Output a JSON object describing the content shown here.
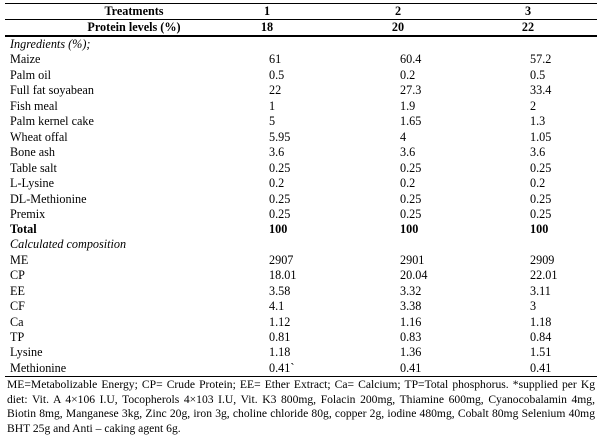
{
  "header": {
    "treatments_label": "Treatments",
    "treatment_numbers": [
      "1",
      "2",
      "3"
    ],
    "protein_label": "Protein levels (%)",
    "protein_values": [
      "18",
      "20",
      "22"
    ]
  },
  "ingredients_title": "Ingredients (%);",
  "ingredients": [
    {
      "name": "Maize",
      "values": [
        "61",
        "60.4",
        "57.2"
      ]
    },
    {
      "name": "Palm oil",
      "values": [
        "0.5",
        "0.2",
        "0.5"
      ]
    },
    {
      "name": "Full fat soyabean",
      "values": [
        "22",
        "27.3",
        "33.4"
      ]
    },
    {
      "name": "Fish meal",
      "values": [
        "1",
        "1.9",
        "2"
      ]
    },
    {
      "name": "Palm kernel cake",
      "values": [
        "5",
        "1.65",
        "1.3"
      ]
    },
    {
      "name": "Wheat offal",
      "values": [
        "5.95",
        "4",
        "1.05"
      ]
    },
    {
      "name": "Bone ash",
      "values": [
        "3.6",
        "3.6",
        "3.6"
      ]
    },
    {
      "name": "Table salt",
      "values": [
        "0.25",
        "0.25",
        "0.25"
      ]
    },
    {
      "name": "L-Lysine",
      "values": [
        "0.2",
        "0.2",
        "0.2"
      ]
    },
    {
      "name": "DL-Methionine",
      "values": [
        "0.25",
        "0.25",
        "0.25"
      ]
    },
    {
      "name": "Premix",
      "values": [
        "0.25",
        "0.25",
        "0.25"
      ]
    }
  ],
  "total": {
    "name": "Total",
    "values": [
      "100",
      "100",
      "100"
    ]
  },
  "composition_title": "Calculated composition",
  "composition": [
    {
      "name": "ME",
      "values": [
        "2907",
        "2901",
        "2909"
      ]
    },
    {
      "name": "CP",
      "values": [
        "18.01",
        "20.04",
        "22.01"
      ]
    },
    {
      "name": "EE",
      "values": [
        "3.58",
        "3.32",
        "3.11"
      ]
    },
    {
      "name": "CF",
      "values": [
        "4.1",
        "3.38",
        "3"
      ]
    },
    {
      "name": "Ca",
      "values": [
        "1.12",
        "1.16",
        "1.18"
      ]
    },
    {
      "name": "TP",
      "values": [
        "0.81",
        "0.83",
        "0.84"
      ]
    },
    {
      "name": "Lysine",
      "values": [
        "1.18",
        "1.36",
        "1.51"
      ]
    },
    {
      "name": "Methionine",
      "values": [
        "0.41`",
        "0.41",
        "0.41"
      ]
    }
  ],
  "footnote": "ME=Metabolizable Energy; CP= Crude Protein; EE= Ether Extract; Ca= Calcium; TP=Total phosphorus. *supplied per Kg diet: Vit. A 4×106 I.U, Tocopherols 4×103 I.U, Vit. K3 800mg, Folacin 200mg, Thiamine 600mg, Cyanocobalamin 4mg, Biotin 8mg, Manganese 3kg, Zinc 20g, iron 3g, choline chloride 80g, copper 2g, iodine 480mg, Cobalt 80mg Selenium 40mg BHT 25g and Anti – caking agent 6g."
}
